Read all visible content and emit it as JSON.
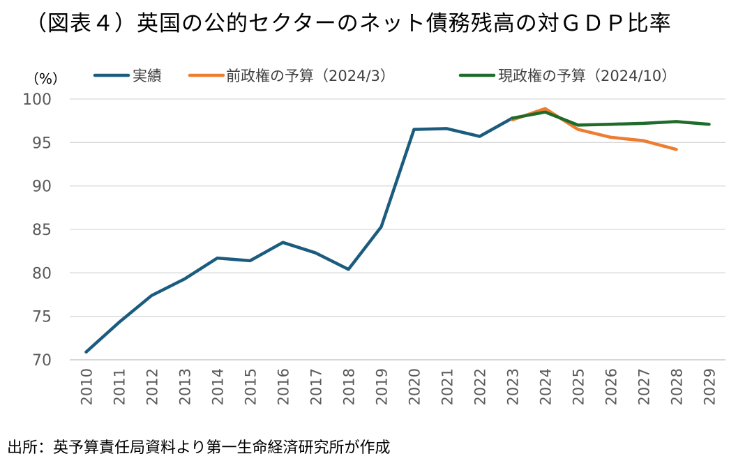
{
  "title": "（図表４）英国の公的セクターのネット債務残高の対ＧＤＰ比率",
  "source": "出所：英予算責任局資料より第一生命経済研究所が作成",
  "chart_data": {
    "type": "line",
    "title": "（図表４）英国の公的セクターのネット債務残高の対ＧＤＰ比率",
    "ylabel": "（%）",
    "xlabel": "",
    "ylim": [
      70,
      100
    ],
    "yticks": [
      "100",
      "95",
      "90",
      "85",
      "80",
      "75",
      "70"
    ],
    "categories": [
      "2010",
      "2011",
      "2012",
      "2013",
      "2014",
      "2015",
      "2016",
      "2017",
      "2018",
      "2019",
      "2020",
      "2021",
      "2022",
      "2023",
      "2024",
      "2025",
      "2026",
      "2027",
      "2028",
      "2029"
    ],
    "grid": true,
    "legend_position": "top",
    "series": [
      {
        "name": "実績",
        "color": "#1b5c7e",
        "x": [
          "2010",
          "2011",
          "2012",
          "2013",
          "2014",
          "2015",
          "2016",
          "2017",
          "2018",
          "2019",
          "2020",
          "2021",
          "2022",
          "2023"
        ],
        "values": [
          70.9,
          74.3,
          77.4,
          79.3,
          81.7,
          81.4,
          83.5,
          82.3,
          80.4,
          85.3,
          96.5,
          96.6,
          95.7,
          97.8
        ]
      },
      {
        "name": "前政権の予算（2024/3）",
        "color": "#ed7d31",
        "x": [
          "2023",
          "2024",
          "2025",
          "2026",
          "2027",
          "2028"
        ],
        "values": [
          97.6,
          98.9,
          96.5,
          95.6,
          95.2,
          94.2
        ]
      },
      {
        "name": "現政権の予算（2024/10）",
        "color": "#1e6b2a",
        "x": [
          "2023",
          "2024",
          "2025",
          "2026",
          "2027",
          "2028",
          "2029"
        ],
        "values": [
          97.8,
          98.5,
          97.0,
          97.1,
          97.2,
          97.4,
          97.1
        ]
      }
    ]
  }
}
